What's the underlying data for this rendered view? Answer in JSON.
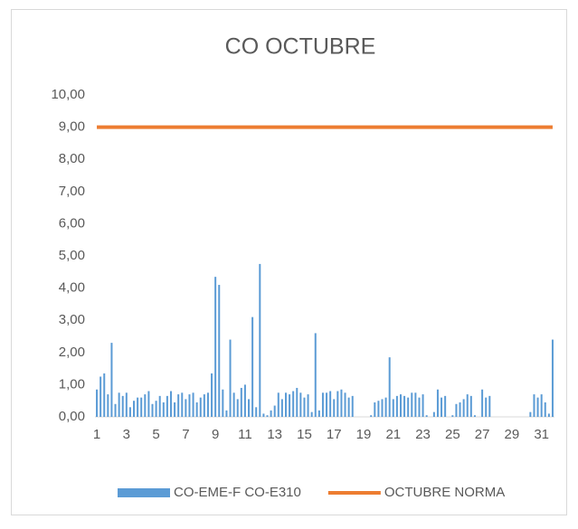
{
  "chart_data": {
    "type": "bar",
    "title": "CO OCTUBRE",
    "categories": [
      "1",
      null,
      null,
      null,
      null,
      null,
      null,
      null,
      "3",
      null,
      null,
      null,
      null,
      null,
      null,
      null,
      "5",
      null,
      null,
      null,
      null,
      null,
      null,
      null,
      "7",
      null,
      null,
      null,
      null,
      null,
      null,
      null,
      "9",
      null,
      null,
      null,
      null,
      null,
      null,
      null,
      "11",
      null,
      null,
      null,
      null,
      null,
      null,
      null,
      "13",
      null,
      null,
      null,
      null,
      null,
      null,
      null,
      "15",
      null,
      null,
      null,
      null,
      null,
      null,
      null,
      "17",
      null,
      null,
      null,
      null,
      null,
      null,
      null,
      "19",
      null,
      null,
      null,
      null,
      null,
      null,
      null,
      "21",
      null,
      null,
      null,
      null,
      null,
      null,
      null,
      "23",
      null,
      null,
      null,
      null,
      null,
      null,
      null,
      "25",
      null,
      null,
      null,
      null,
      null,
      null,
      null,
      "27",
      null,
      null,
      null,
      null,
      null,
      null,
      null,
      "29",
      null,
      null,
      null,
      null,
      null,
      null,
      null,
      "31",
      null,
      null,
      null
    ],
    "series": [
      {
        "name": "CO-EME-F CO-E310",
        "color": "#5b9bd5",
        "type": "bar",
        "values": [
          0.85,
          1.25,
          1.35,
          0.7,
          2.3,
          0.4,
          0.75,
          0.65,
          0.75,
          0.3,
          0.5,
          0.6,
          0.6,
          0.7,
          0.8,
          0.4,
          0.5,
          0.65,
          0.45,
          0.65,
          0.8,
          0.45,
          0.7,
          0.75,
          0.55,
          0.7,
          0.75,
          0.45,
          0.6,
          0.7,
          0.75,
          1.35,
          4.35,
          4.1,
          0.85,
          0.2,
          2.4,
          0.75,
          0.55,
          0.9,
          1.0,
          0.55,
          3.1,
          0.3,
          4.75,
          0.1,
          0.05,
          0.2,
          0.35,
          0.75,
          0.55,
          0.75,
          0.7,
          0.8,
          0.9,
          0.75,
          0.6,
          0.7,
          0.15,
          2.6,
          0.2,
          0.75,
          0.75,
          0.8,
          0.55,
          0.8,
          0.85,
          0.75,
          0.6,
          0.65,
          0,
          0,
          0,
          0,
          0.05,
          0.45,
          0.5,
          0.55,
          0.6,
          1.85,
          0.55,
          0.65,
          0.7,
          0.65,
          0.6,
          0.75,
          0.75,
          0.6,
          0.7,
          0.05,
          0,
          0.15,
          0.85,
          0.6,
          0.65,
          0,
          0.05,
          0.4,
          0.45,
          0.55,
          0.7,
          0.65,
          0.05,
          0,
          0.85,
          0.6,
          0.65,
          0,
          0,
          0,
          0,
          0,
          0,
          0,
          0,
          0,
          0,
          0.15,
          0.7,
          0.6,
          0.7,
          0.45,
          0.1,
          2.4
        ]
      },
      {
        "name": "OCTUBRE NORMA",
        "color": "#ed7d31",
        "type": "line",
        "values": [
          9,
          9,
          9,
          9,
          9,
          9,
          9,
          9,
          9,
          9,
          9,
          9,
          9,
          9,
          9,
          9,
          9,
          9,
          9,
          9,
          9,
          9,
          9,
          9,
          9,
          9,
          9,
          9,
          9,
          9,
          9,
          9,
          9,
          9,
          9,
          9,
          9,
          9,
          9,
          9,
          9,
          9,
          9,
          9,
          9,
          9,
          9,
          9,
          9,
          9,
          9,
          9,
          9,
          9,
          9,
          9,
          9,
          9,
          9,
          9,
          9,
          9,
          9,
          9,
          9,
          9,
          9,
          9,
          9,
          9,
          9,
          9,
          9,
          9,
          9,
          9,
          9,
          9,
          9,
          9,
          9,
          9,
          9,
          9,
          9,
          9,
          9,
          9,
          9,
          9,
          9,
          9,
          9,
          9,
          9,
          9,
          9,
          9,
          9,
          9,
          9,
          9,
          9,
          9,
          9,
          9,
          9,
          9,
          9,
          9,
          9,
          9,
          9,
          9,
          9,
          9,
          9,
          9,
          9,
          9,
          9,
          9,
          9,
          9
        ]
      }
    ],
    "ylim": [
      0,
      10
    ],
    "yticks": [
      {
        "value": 0,
        "label": "0,00"
      },
      {
        "value": 1,
        "label": "1,00"
      },
      {
        "value": 2,
        "label": "2,00"
      },
      {
        "value": 3,
        "label": "3,00"
      },
      {
        "value": 4,
        "label": "4,00"
      },
      {
        "value": 5,
        "label": "5,00"
      },
      {
        "value": 6,
        "label": "6,00"
      },
      {
        "value": 7,
        "label": "7,00"
      },
      {
        "value": 8,
        "label": "8,00"
      },
      {
        "value": 9,
        "label": "9,00"
      },
      {
        "value": 10,
        "label": "10,00"
      }
    ],
    "grid": false,
    "legend": "bottom"
  }
}
